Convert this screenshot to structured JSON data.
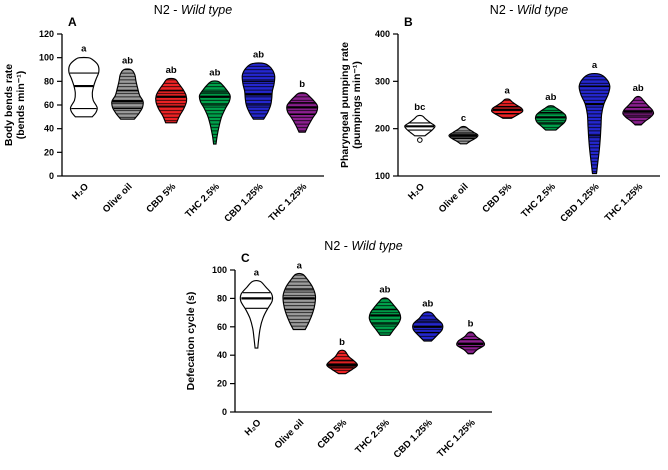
{
  "figure_title": "N2 - Wild type",
  "chart_data": [
    {
      "type": "violin",
      "panel_letter": "A",
      "title_prefix": "N2 - ",
      "title_italic": "Wild type",
      "ylabel_lines": [
        "Body bends rate",
        "(bends min⁻¹)"
      ],
      "ylim": [
        0,
        120
      ],
      "yticks": [
        0,
        20,
        40,
        60,
        80,
        100,
        120
      ],
      "categories": [
        "H₂O",
        "Olive oil",
        "CBD 5%",
        "THC 2.5%",
        "CBD 1.25%",
        "THC 1.25%"
      ],
      "series": [
        {
          "label": "H₂O",
          "color": "#ffffff",
          "hatch": false,
          "letter": "a",
          "median": 76,
          "q1": 57,
          "q3": 87,
          "profile": [
            [
              50,
              0.5
            ],
            [
              54,
              0.72
            ],
            [
              58,
              0.78
            ],
            [
              64,
              0.55
            ],
            [
              70,
              0.5
            ],
            [
              76,
              0.58
            ],
            [
              82,
              0.72
            ],
            [
              88,
              0.88
            ],
            [
              94,
              0.82
            ],
            [
              99,
              0.45
            ],
            [
              100,
              0.25
            ]
          ]
        },
        {
          "label": "Olive oil",
          "color": "#9c9c9c",
          "hatch": true,
          "letter": "ab",
          "median": 63,
          "q1": 57,
          "q3": 72,
          "profile": [
            [
              48,
              0.4
            ],
            [
              53,
              0.68
            ],
            [
              58,
              0.88
            ],
            [
              63,
              0.92
            ],
            [
              68,
              0.72
            ],
            [
              74,
              0.6
            ],
            [
              80,
              0.5
            ],
            [
              86,
              0.42
            ],
            [
              90,
              0.2
            ]
          ]
        },
        {
          "label": "CBD 5%",
          "color": "#ed2224",
          "hatch": true,
          "letter": "ab",
          "median": 67,
          "q1": 59,
          "q3": 72,
          "profile": [
            [
              45,
              0.32
            ],
            [
              51,
              0.5
            ],
            [
              57,
              0.75
            ],
            [
              63,
              0.9
            ],
            [
              68,
              0.88
            ],
            [
              73,
              0.7
            ],
            [
              78,
              0.45
            ],
            [
              82,
              0.22
            ]
          ]
        },
        {
          "label": "THC 2.5%",
          "color": "#00a14b",
          "hatch": true,
          "letter": "ab",
          "median": 67,
          "q1": 60,
          "q3": 71,
          "profile": [
            [
              27,
              0.07
            ],
            [
              34,
              0.14
            ],
            [
              42,
              0.25
            ],
            [
              50,
              0.4
            ],
            [
              57,
              0.62
            ],
            [
              63,
              0.85
            ],
            [
              68,
              0.9
            ],
            [
              73,
              0.68
            ],
            [
              78,
              0.38
            ],
            [
              80,
              0.18
            ]
          ]
        },
        {
          "label": "CBD 1.25%",
          "color": "#2427cf",
          "hatch": true,
          "letter": "ab",
          "median": 69,
          "q1": 60,
          "q3": 80,
          "profile": [
            [
              48,
              0.3
            ],
            [
              54,
              0.55
            ],
            [
              60,
              0.72
            ],
            [
              66,
              0.78
            ],
            [
              72,
              0.82
            ],
            [
              78,
              0.92
            ],
            [
              85,
              0.95
            ],
            [
              91,
              0.75
            ],
            [
              95,
              0.35
            ]
          ]
        },
        {
          "label": "THC 1.25%",
          "color": "#8b1f8f",
          "hatch": true,
          "letter": "b",
          "median": 58,
          "q1": 52,
          "q3": 62,
          "profile": [
            [
              37,
              0.18
            ],
            [
              43,
              0.38
            ],
            [
              49,
              0.62
            ],
            [
              54,
              0.85
            ],
            [
              59,
              0.9
            ],
            [
              63,
              0.72
            ],
            [
              67,
              0.45
            ],
            [
              70,
              0.2
            ]
          ]
        }
      ]
    },
    {
      "type": "violin",
      "panel_letter": "B",
      "title_prefix": "N2 - ",
      "title_italic": "Wild type",
      "ylabel_lines": [
        "Pharyngeal pumping rate",
        "(pumpings min⁻¹)"
      ],
      "ylim": [
        100,
        400
      ],
      "yticks": [
        100,
        200,
        300,
        400
      ],
      "categories": [
        "H₂O",
        "Olive oil",
        "CBD 5%",
        "THC 2.5%",
        "CBD 1.25%",
        "THC 1.25%"
      ],
      "series": [
        {
          "label": "H₂O",
          "color": "#ffffff",
          "hatch": false,
          "letter": "bc",
          "median": 205,
          "q1": 197,
          "q3": 212,
          "outlier": 176,
          "profile": [
            [
              185,
              0.3
            ],
            [
              192,
              0.55
            ],
            [
              200,
              0.8
            ],
            [
              206,
              0.88
            ],
            [
              213,
              0.6
            ],
            [
              221,
              0.32
            ],
            [
              227,
              0.14
            ]
          ]
        },
        {
          "label": "Olive oil",
          "color": "#9c9c9c",
          "hatch": true,
          "letter": "c",
          "median": 185,
          "q1": 179,
          "q3": 191,
          "profile": [
            [
              168,
              0.18
            ],
            [
              174,
              0.42
            ],
            [
              180,
              0.72
            ],
            [
              186,
              0.85
            ],
            [
              192,
              0.62
            ],
            [
              199,
              0.3
            ],
            [
              204,
              0.12
            ]
          ]
        },
        {
          "label": "CBD 5%",
          "color": "#ed2224",
          "hatch": true,
          "letter": "a",
          "median": 240,
          "q1": 232,
          "q3": 247,
          "profile": [
            [
              222,
              0.25
            ],
            [
              229,
              0.6
            ],
            [
              236,
              0.9
            ],
            [
              243,
              0.85
            ],
            [
              250,
              0.55
            ],
            [
              257,
              0.28
            ],
            [
              262,
              0.12
            ]
          ]
        },
        {
          "label": "THC 2.5%",
          "color": "#00a14b",
          "hatch": true,
          "letter": "ab",
          "median": 224,
          "q1": 212,
          "q3": 234,
          "profile": [
            [
              197,
              0.3
            ],
            [
              205,
              0.55
            ],
            [
              213,
              0.8
            ],
            [
              221,
              0.9
            ],
            [
              229,
              0.85
            ],
            [
              237,
              0.6
            ],
            [
              244,
              0.3
            ],
            [
              248,
              0.12
            ]
          ]
        },
        {
          "label": "CBD 1.25%",
          "color": "#2427cf",
          "hatch": true,
          "letter": "a",
          "median": 252,
          "q1": 185,
          "q3": 290,
          "profile": [
            [
              105,
              0.12
            ],
            [
              130,
              0.2
            ],
            [
              155,
              0.28
            ],
            [
              180,
              0.34
            ],
            [
              205,
              0.38
            ],
            [
              230,
              0.42
            ],
            [
              252,
              0.55
            ],
            [
              272,
              0.8
            ],
            [
              290,
              0.9
            ],
            [
              305,
              0.7
            ],
            [
              315,
              0.3
            ]
          ]
        },
        {
          "label": "THC 1.25%",
          "color": "#8b1f8f",
          "hatch": true,
          "letter": "ab",
          "median": 236,
          "q1": 227,
          "q3": 245,
          "profile": [
            [
              208,
              0.18
            ],
            [
              216,
              0.42
            ],
            [
              224,
              0.72
            ],
            [
              232,
              0.9
            ],
            [
              240,
              0.82
            ],
            [
              250,
              0.55
            ],
            [
              260,
              0.3
            ],
            [
              267,
              0.12
            ]
          ]
        }
      ]
    },
    {
      "type": "violin",
      "panel_letter": "C",
      "title_prefix": "N2 - ",
      "title_italic": "Wild type",
      "ylabel_lines": [
        "Defecation cycle  (s)"
      ],
      "ylim": [
        0,
        100
      ],
      "yticks": [
        0,
        20,
        40,
        60,
        80,
        100
      ],
      "categories": [
        "H₂O",
        "Olive oil",
        "CBD 5%",
        "THC 2.5%",
        "CBD 1.25%",
        "THC 1.25%"
      ],
      "series": [
        {
          "label": "H₂O",
          "color": "#ffffff",
          "hatch": false,
          "letter": "a",
          "median": 80,
          "q1": 73,
          "q3": 84,
          "profile": [
            [
              45,
              0.08
            ],
            [
              52,
              0.14
            ],
            [
              59,
              0.22
            ],
            [
              66,
              0.38
            ],
            [
              72,
              0.62
            ],
            [
              78,
              0.92
            ],
            [
              83,
              0.9
            ],
            [
              88,
              0.55
            ],
            [
              92,
              0.22
            ]
          ]
        },
        {
          "label": "Olive oil",
          "color": "#9c9c9c",
          "hatch": true,
          "letter": "a",
          "median": 80,
          "q1": 72,
          "q3": 86,
          "profile": [
            [
              58,
              0.35
            ],
            [
              64,
              0.6
            ],
            [
              70,
              0.8
            ],
            [
              76,
              0.92
            ],
            [
              82,
              0.95
            ],
            [
              88,
              0.78
            ],
            [
              93,
              0.5
            ],
            [
              97,
              0.2
            ]
          ]
        },
        {
          "label": "CBD 5%",
          "color": "#ed2224",
          "hatch": true,
          "letter": "b",
          "median": 33,
          "q1": 31,
          "q3": 36,
          "profile": [
            [
              27,
              0.2
            ],
            [
              30,
              0.6
            ],
            [
              33,
              0.9
            ],
            [
              36,
              0.7
            ],
            [
              39,
              0.4
            ],
            [
              43,
              0.15
            ]
          ]
        },
        {
          "label": "THC 2.5%",
          "color": "#00a14b",
          "hatch": true,
          "letter": "ab",
          "median": 68,
          "q1": 62,
          "q3": 72,
          "profile": [
            [
              54,
              0.28
            ],
            [
              58,
              0.52
            ],
            [
              62,
              0.78
            ],
            [
              66,
              0.92
            ],
            [
              70,
              0.85
            ],
            [
              74,
              0.6
            ],
            [
              78,
              0.32
            ],
            [
              80,
              0.14
            ]
          ]
        },
        {
          "label": "CBD 1.25%",
          "color": "#2427cf",
          "hatch": true,
          "letter": "ab",
          "median": 60,
          "q1": 56,
          "q3": 64,
          "profile": [
            [
              50,
              0.22
            ],
            [
              54,
              0.55
            ],
            [
              58,
              0.85
            ],
            [
              62,
              0.85
            ],
            [
              66,
              0.5
            ],
            [
              70,
              0.2
            ]
          ]
        },
        {
          "label": "THC 1.25%",
          "color": "#8b1f8f",
          "hatch": true,
          "letter": "b",
          "median": 48,
          "q1": 46,
          "q3": 51,
          "profile": [
            [
              41,
              0.14
            ],
            [
              44,
              0.4
            ],
            [
              47,
              0.8
            ],
            [
              50,
              0.72
            ],
            [
              53,
              0.35
            ],
            [
              56,
              0.12
            ]
          ]
        }
      ]
    }
  ]
}
